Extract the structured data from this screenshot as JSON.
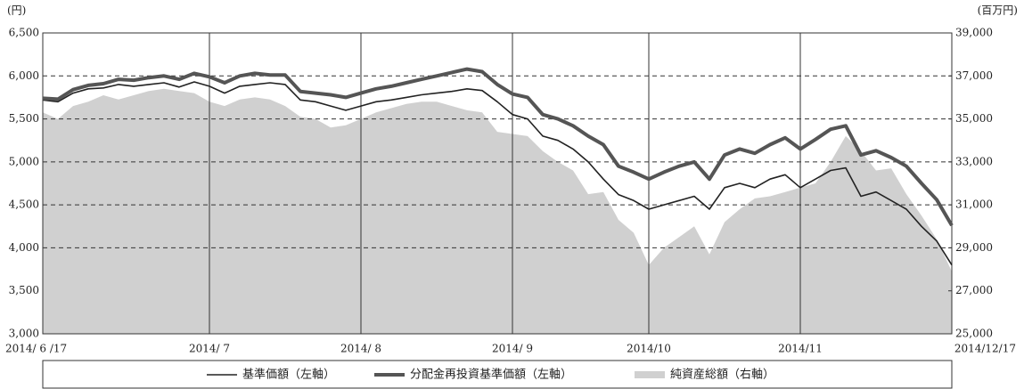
{
  "chart_data": {
    "type": "line",
    "y_label": "(円)",
    "y2_label": "(百万円)",
    "categories": [
      "2014/ 6 /17",
      null,
      null,
      null,
      null,
      null,
      null,
      null,
      null,
      null,
      null,
      "2014/ 7",
      null,
      null,
      null,
      null,
      null,
      null,
      null,
      null,
      null,
      "2014/ 8",
      null,
      null,
      null,
      null,
      null,
      null,
      null,
      null,
      null,
      "2014/ 9",
      null,
      null,
      null,
      null,
      null,
      null,
      null,
      null,
      "2014/10",
      null,
      null,
      null,
      null,
      null,
      null,
      null,
      null,
      null,
      "2014/11",
      null,
      null,
      null,
      null,
      null,
      null,
      null,
      null,
      null,
      "2014/12/17"
    ],
    "ylim": [
      3000,
      6500
    ],
    "yticks": [
      {
        "value": 3000,
        "label": "3,000"
      },
      {
        "value": 3500,
        "label": "3,500"
      },
      {
        "value": 4000,
        "label": "4,000"
      },
      {
        "value": 4500,
        "label": "4,500"
      },
      {
        "value": 5000,
        "label": "5,000"
      },
      {
        "value": 5500,
        "label": "5,500"
      },
      {
        "value": 6000,
        "label": "6,000"
      },
      {
        "value": 6500,
        "label": "6,500"
      }
    ],
    "y2lim": [
      25000,
      39000
    ],
    "y2ticks": [
      {
        "value": 25000,
        "label": "25,000"
      },
      {
        "value": 27000,
        "label": "27,000"
      },
      {
        "value": 29000,
        "label": "29,000"
      },
      {
        "value": 31000,
        "label": "31,000"
      },
      {
        "value": 33000,
        "label": "33,000"
      },
      {
        "value": 35000,
        "label": "35,000"
      },
      {
        "value": 37000,
        "label": "37,000"
      },
      {
        "value": 39000,
        "label": "39,000"
      }
    ],
    "grid": true,
    "series": [
      {
        "name": "純資産総額（右軸）",
        "color": "#d0d0d0",
        "axis": "y2",
        "fill": true,
        "values": [
          35300,
          35000,
          35600,
          35800,
          36100,
          35900,
          36100,
          36300,
          36400,
          36300,
          36200,
          35800,
          35600,
          35900,
          36000,
          35900,
          35600,
          35100,
          35000,
          34600,
          34700,
          35000,
          35300,
          35500,
          35700,
          35800,
          35800,
          35600,
          35400,
          35300,
          34400,
          34300,
          34200,
          33500,
          33000,
          32600,
          31500,
          31600,
          30300,
          29700,
          28200,
          29000,
          29500,
          30000,
          28700,
          30200,
          30800,
          31300,
          31400,
          31600,
          31800,
          32000,
          33000,
          34200,
          33500,
          32600,
          32700,
          31500,
          30500,
          29400,
          27900
        ]
      },
      {
        "name": "基準価額（左軸）",
        "color": "#222222",
        "line_width": 1.6,
        "values": [
          5720,
          5700,
          5800,
          5850,
          5860,
          5900,
          5880,
          5900,
          5920,
          5870,
          5930,
          5880,
          5800,
          5880,
          5900,
          5920,
          5900,
          5720,
          5700,
          5650,
          5600,
          5650,
          5700,
          5720,
          5750,
          5780,
          5800,
          5820,
          5850,
          5830,
          5700,
          5550,
          5500,
          5300,
          5250,
          5150,
          5000,
          4800,
          4620,
          4550,
          4450,
          4500,
          4550,
          4600,
          4450,
          4700,
          4750,
          4700,
          4800,
          4850,
          4700,
          4800,
          4900,
          4930,
          4600,
          4650,
          4550,
          4450,
          4250,
          4080,
          3800
        ]
      },
      {
        "name": "分配金再投資基準価額（左軸）",
        "color": "#555555",
        "line_width": 4,
        "values": [
          5740,
          5730,
          5840,
          5890,
          5910,
          5960,
          5950,
          5980,
          6000,
          5960,
          6030,
          5990,
          5920,
          6000,
          6030,
          6010,
          6010,
          5820,
          5800,
          5780,
          5750,
          5800,
          5850,
          5880,
          5920,
          5960,
          6000,
          6040,
          6080,
          6050,
          5900,
          5790,
          5750,
          5550,
          5500,
          5420,
          5300,
          5200,
          4950,
          4880,
          4800,
          4880,
          4950,
          5000,
          4800,
          5080,
          5150,
          5100,
          5200,
          5280,
          5150,
          5260,
          5380,
          5420,
          5080,
          5130,
          5050,
          4950,
          4750,
          4560,
          4260
        ]
      }
    ]
  }
}
